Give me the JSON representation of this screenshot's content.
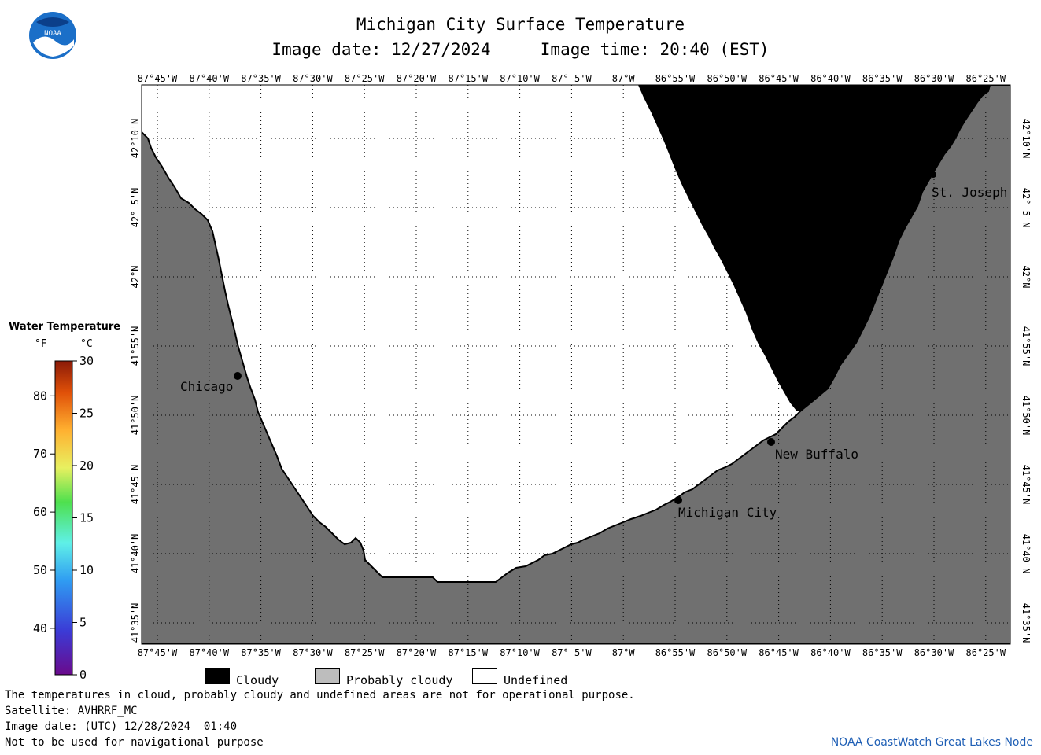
{
  "header": {
    "title": "Michigan City Surface Temperature",
    "subtitle": "Image date: 12/27/2024     Image time: 20:40 (EST)",
    "logo_text": "NOAA"
  },
  "map": {
    "lon_labels": [
      "87°45'W",
      "87°40'W",
      "87°35'W",
      "87°30'W",
      "87°25'W",
      "87°20'W",
      "87°15'W",
      "87°10'W",
      "87° 5'W",
      "87°W",
      "86°55'W",
      "86°50'W",
      "86°45'W",
      "86°40'W",
      "86°35'W",
      "86°30'W",
      "86°25'W"
    ],
    "lat_labels": [
      "42°10'N",
      "42° 5'N",
      "42°N",
      "41°55'N",
      "41°50'N",
      "41°45'N",
      "41°40'N",
      "41°35'N"
    ],
    "cities": [
      {
        "name": "Chicago"
      },
      {
        "name": "Michigan City"
      },
      {
        "name": "New Buffalo"
      },
      {
        "name": "St. Joseph"
      }
    ],
    "colors": {
      "land": "#707070",
      "cloud": "#000000",
      "undefined": "#ffffff",
      "grid": "#000000"
    }
  },
  "colorbar": {
    "title": "Water Temperature",
    "unit_f": "°F",
    "unit_c": "°C",
    "f_ticks": [
      "40",
      "50",
      "60",
      "70",
      "80"
    ],
    "c_ticks": [
      "0",
      "5",
      "10",
      "15",
      "20",
      "25",
      "30"
    ]
  },
  "key": {
    "cloudy": "Cloudy",
    "probably_cloudy": "Probably cloudy",
    "undefined": "Undefined"
  },
  "footer": {
    "line1": "The temperatures in cloud, probably cloudy and undefined areas are not for operational purpose.",
    "line2": "Satellite: AVHRRF_MC",
    "line3": "Image date: (UTC) 12/28/2024  01:40",
    "line4": "Not to be used for navigational purpose",
    "credit": "NOAA CoastWatch Great Lakes Node"
  }
}
